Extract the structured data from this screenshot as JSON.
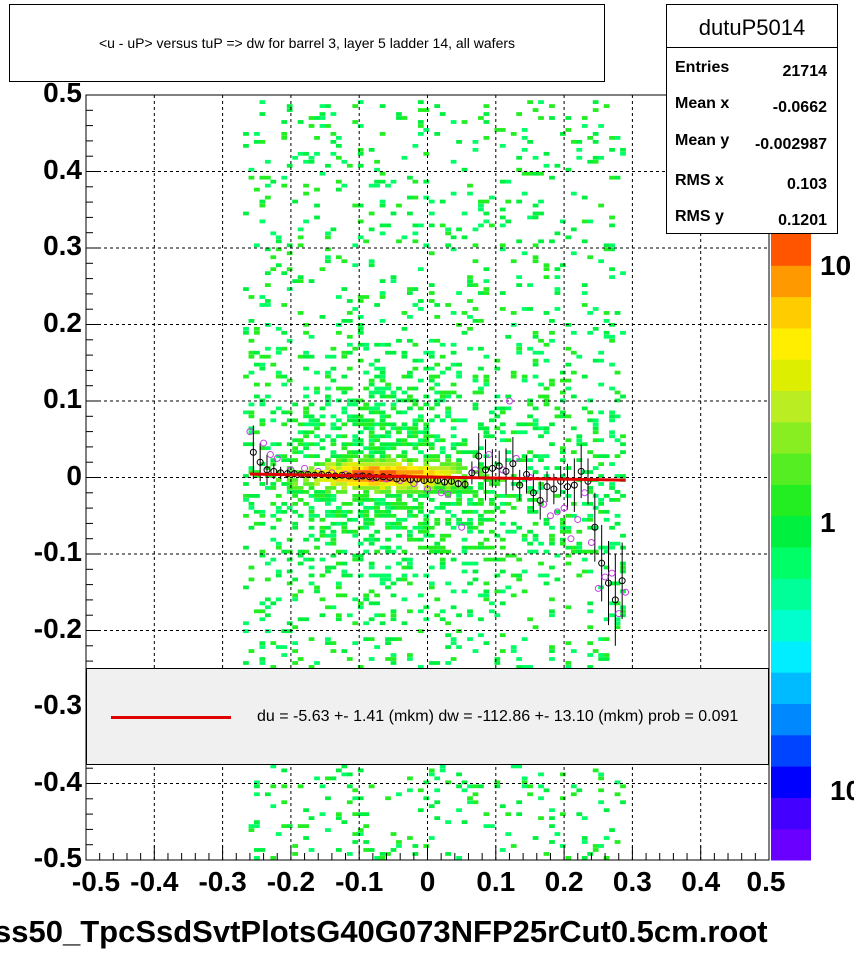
{
  "title": "<u - uP>       versus  tuP =>  dw for barrel 3, layer 5 ladder 14, all wafers",
  "stats": {
    "name": "dutuP5014",
    "rows": [
      {
        "key": "Entries",
        "value": "21714"
      },
      {
        "key": "Mean x",
        "value": "-0.0662"
      },
      {
        "key": "Mean y",
        "value": "-0.002987"
      },
      {
        "key": "RMS x",
        "value": "0.103"
      },
      {
        "key": "RMS y",
        "value": "0.1201"
      }
    ]
  },
  "legend": {
    "text": "du =   -5.63 +-  1.41 (mkm) dw = -112.86 +- 13.10 (mkm) prob = 0.091",
    "line_color": "#e00000"
  },
  "footer": "ss50_TpcSsdSvtPlotsG40G073NFP25rCut0.5cm.root",
  "colorbar_labels": [
    "10",
    "1",
    "10"
  ],
  "chart_data": {
    "type": "heatmap",
    "xlim": [
      -0.5,
      0.5
    ],
    "ylim": [
      -0.5,
      0.5
    ],
    "x_ticks": [
      "-0.5",
      "-0.4",
      "-0.3",
      "-0.2",
      "-0.1",
      "0",
      "0.1",
      "0.2",
      "0.3",
      "0.4",
      "0.5"
    ],
    "y_ticks": [
      "0.5",
      "0.4",
      "0.3",
      "0.2",
      "0.1",
      "0",
      "-0.1",
      "-0.2",
      "-0.3",
      "-0.4",
      "-0.5"
    ],
    "grid": true,
    "colorscale": [
      "#6a00ff",
      "#4400ff",
      "#0000ff",
      "#0044ff",
      "#0088ff",
      "#00bbff",
      "#00eeff",
      "#00ffcc",
      "#00ff99",
      "#00ff66",
      "#00f040",
      "#22ee22",
      "#55ee22",
      "#88ee22",
      "#bbee22",
      "#ddee00",
      "#ffee00",
      "#ffcc00",
      "#ff9900",
      "#ff5500"
    ],
    "fit_line": {
      "x": [
        -0.26,
        0.29
      ],
      "y": [
        0.0045,
        -0.0035
      ],
      "color": "#e00000"
    },
    "black_points": {
      "x": [
        -0.255,
        -0.245,
        -0.235,
        -0.225,
        -0.215,
        -0.205,
        -0.195,
        -0.185,
        -0.175,
        -0.165,
        -0.155,
        -0.145,
        -0.135,
        -0.125,
        -0.115,
        -0.105,
        -0.095,
        -0.085,
        -0.075,
        -0.065,
        -0.055,
        -0.045,
        -0.035,
        -0.025,
        -0.015,
        -0.005,
        0.005,
        0.015,
        0.025,
        0.035,
        0.045,
        0.055,
        0.065,
        0.075,
        0.085,
        0.095,
        0.105,
        0.115,
        0.125,
        0.135,
        0.145,
        0.155,
        0.165,
        0.175,
        0.185,
        0.195,
        0.205,
        0.215,
        0.225,
        0.235,
        0.245,
        0.255,
        0.265,
        0.275,
        0.285
      ],
      "y": [
        0.033,
        0.02,
        0.01,
        0.008,
        0.006,
        0.005,
        0.005,
        0.004,
        0.004,
        0.003,
        0.004,
        0.003,
        0.002,
        0.003,
        0.002,
        0.001,
        0.002,
        0.001,
        0.0,
        0.001,
        0.0,
        -0.002,
        -0.001,
        -0.003,
        -0.002,
        -0.004,
        -0.003,
        -0.004,
        -0.006,
        -0.005,
        -0.008,
        -0.009,
        0.006,
        0.028,
        0.01,
        0.012,
        0.015,
        0.008,
        0.018,
        -0.01,
        0.004,
        -0.02,
        -0.03,
        -0.012,
        -0.015,
        -0.005,
        -0.012,
        -0.01,
        0.008,
        -0.005,
        -0.065,
        -0.112,
        -0.138,
        -0.16,
        -0.135
      ],
      "err": [
        0.035,
        0.025,
        0.02,
        0.01,
        0.008,
        0.006,
        0.005,
        0.004,
        0.004,
        0.004,
        0.003,
        0.003,
        0.003,
        0.003,
        0.003,
        0.003,
        0.003,
        0.003,
        0.003,
        0.003,
        0.003,
        0.003,
        0.003,
        0.003,
        0.003,
        0.003,
        0.003,
        0.003,
        0.004,
        0.004,
        0.005,
        0.006,
        0.015,
        0.03,
        0.04,
        0.025,
        0.02,
        0.03,
        0.035,
        0.02,
        0.025,
        0.025,
        0.025,
        0.02,
        0.02,
        0.02,
        0.03,
        0.035,
        0.035,
        0.03,
        0.045,
        0.05,
        0.055,
        0.06,
        0.05
      ]
    },
    "purple_points": {
      "x": [
        -0.26,
        -0.24,
        -0.23,
        -0.22,
        -0.2,
        -0.18,
        -0.16,
        -0.14,
        -0.12,
        -0.1,
        -0.08,
        -0.06,
        -0.04,
        -0.02,
        0.0,
        0.02,
        0.03,
        0.05,
        0.07,
        0.09,
        0.11,
        0.12,
        0.13,
        0.15,
        0.17,
        0.18,
        0.19,
        0.2,
        0.21,
        0.22,
        0.23,
        0.24,
        0.25,
        0.26,
        0.27,
        0.28,
        0.29
      ],
      "y": [
        0.06,
        0.045,
        0.03,
        0.025,
        0.01,
        0.012,
        0.008,
        0.006,
        0.004,
        0.002,
        0.0,
        -0.002,
        -0.004,
        -0.008,
        -0.015,
        -0.02,
        -0.022,
        -0.065,
        0.01,
        0.03,
        0.01,
        0.1,
        0.025,
        0.0,
        -0.035,
        -0.05,
        -0.045,
        -0.04,
        -0.08,
        -0.055,
        -0.02,
        -0.085,
        -0.145,
        -0.13,
        -0.125,
        -0.178,
        -0.15
      ]
    }
  }
}
